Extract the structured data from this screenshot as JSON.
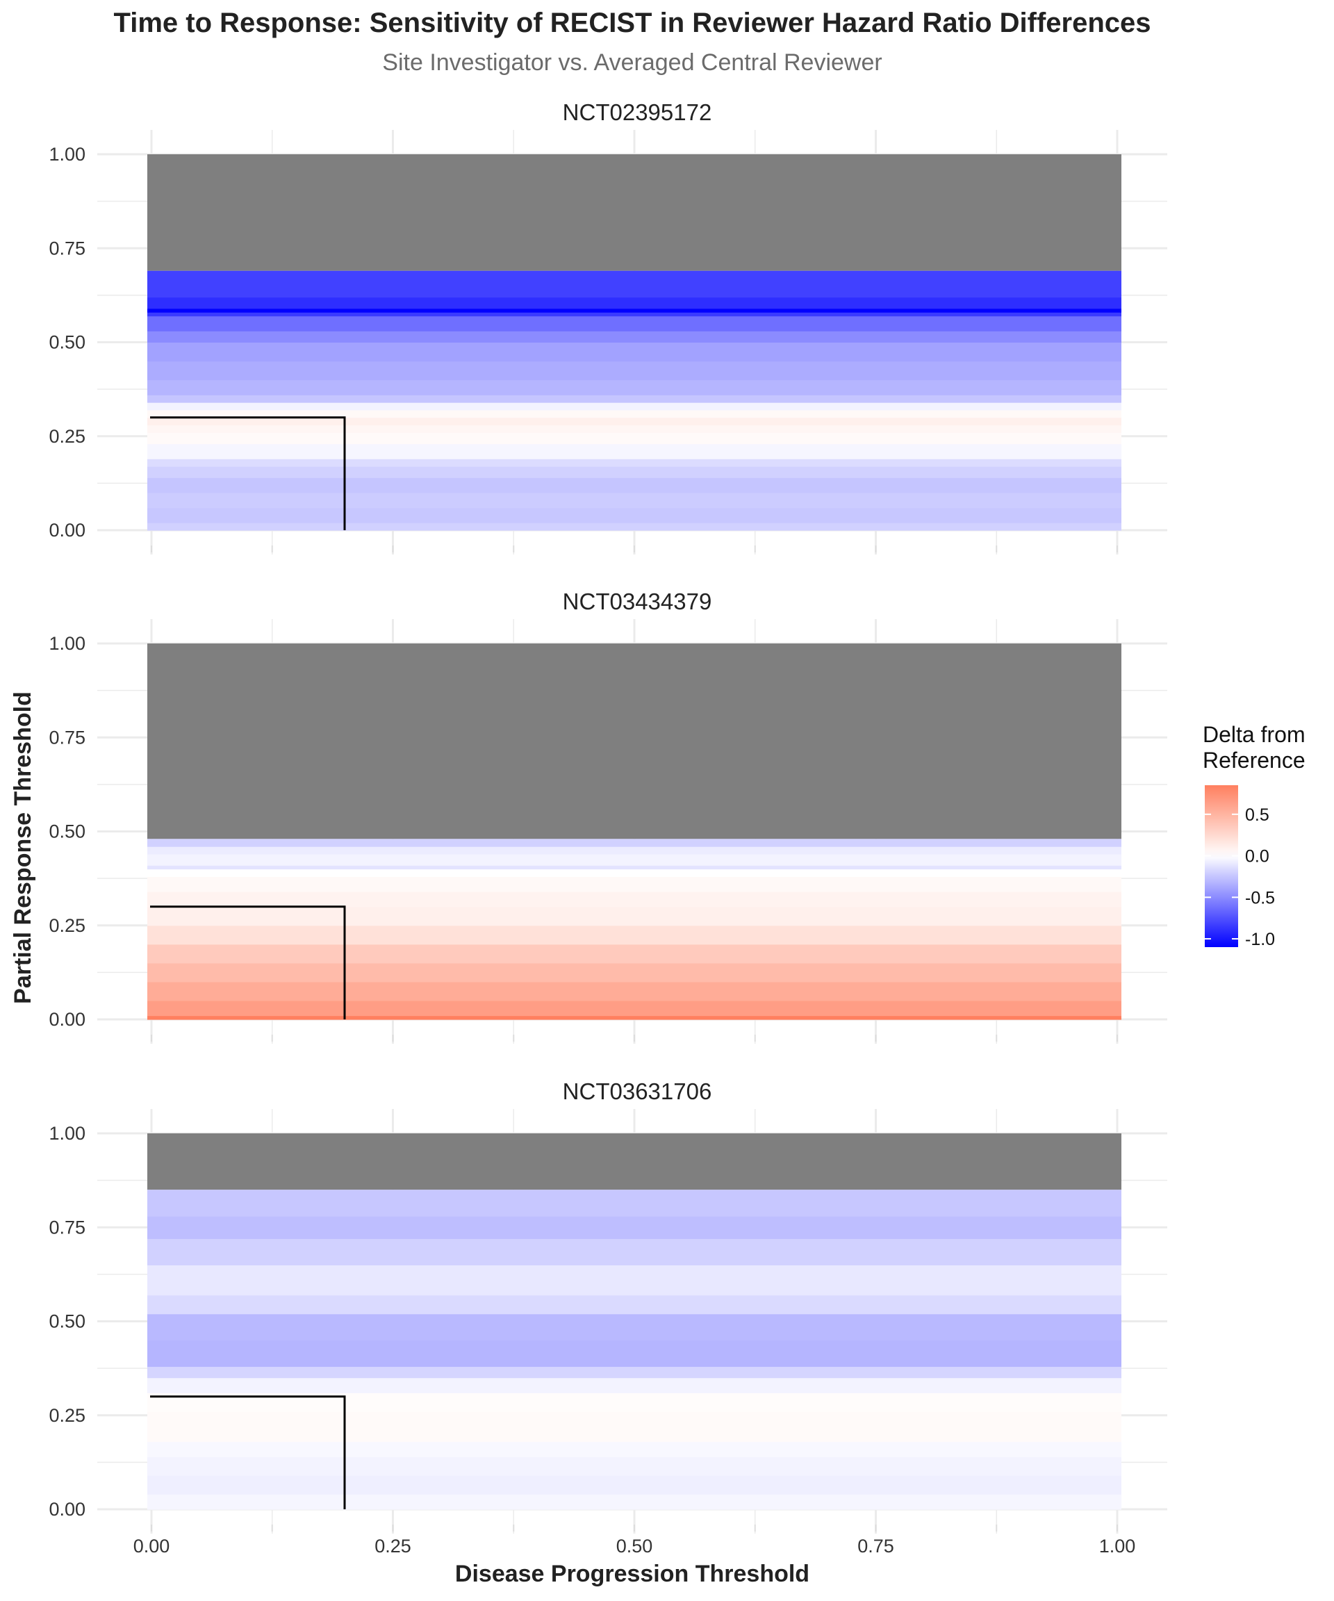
{
  "chart_data": {
    "type": "heatmap",
    "title": "Time to Response: Sensitivity of RECIST in Reviewer Hazard Ratio Differences",
    "subtitle": "Site Investigator vs. Averaged Central Reviewer",
    "xlabel": "Disease Progression Threshold",
    "ylabel": "Partial Response Threshold",
    "xlim": [
      0,
      1
    ],
    "ylim": [
      0,
      1
    ],
    "x_ticks": [
      "0.00",
      "0.25",
      "0.50",
      "0.75",
      "1.00"
    ],
    "y_ticks": [
      "0.00",
      "0.25",
      "0.50",
      "0.75",
      "1.00"
    ],
    "grid": true,
    "na_color": "#7f7f7f",
    "color_scale": {
      "title_lines": [
        "Delta from",
        "Reference"
      ],
      "low_color": "#0000ff",
      "mid_color": "#ffffff",
      "high_color": "#ff7f5f",
      "limits": [
        -1.1,
        0.85
      ],
      "ticks": [
        {
          "value": 0.5,
          "label": "0.5"
        },
        {
          "value": 0.0,
          "label": "0.0"
        },
        {
          "value": -0.5,
          "label": "-0.5"
        },
        {
          "value": -1.0,
          "label": "-1.0"
        }
      ],
      "placement": "right"
    },
    "reference_point": {
      "x": 0.2,
      "y": 0.3
    },
    "panels": [
      {
        "strip": "NCT02395172",
        "na_above": 0.69,
        "bands": [
          {
            "y0": 0.0,
            "y1": 0.02,
            "delta": -0.2
          },
          {
            "y0": 0.02,
            "y1": 0.06,
            "delta": -0.24
          },
          {
            "y0": 0.06,
            "y1": 0.1,
            "delta": -0.22
          },
          {
            "y0": 0.1,
            "y1": 0.14,
            "delta": -0.25
          },
          {
            "y0": 0.14,
            "y1": 0.17,
            "delta": -0.2
          },
          {
            "y0": 0.17,
            "y1": 0.19,
            "delta": -0.15
          },
          {
            "y0": 0.19,
            "y1": 0.23,
            "delta": -0.04
          },
          {
            "y0": 0.23,
            "y1": 0.26,
            "delta": 0.03
          },
          {
            "y0": 0.26,
            "y1": 0.28,
            "delta": 0.06
          },
          {
            "y0": 0.28,
            "y1": 0.3,
            "delta": 0.1
          },
          {
            "y0": 0.3,
            "y1": 0.32,
            "delta": 0.04
          },
          {
            "y0": 0.32,
            "y1": 0.34,
            "delta": -0.05
          },
          {
            "y0": 0.34,
            "y1": 0.36,
            "delta": -0.25
          },
          {
            "y0": 0.36,
            "y1": 0.4,
            "delta": -0.32
          },
          {
            "y0": 0.4,
            "y1": 0.45,
            "delta": -0.36
          },
          {
            "y0": 0.45,
            "y1": 0.5,
            "delta": -0.4
          },
          {
            "y0": 0.5,
            "y1": 0.53,
            "delta": -0.5
          },
          {
            "y0": 0.53,
            "y1": 0.57,
            "delta": -0.62
          },
          {
            "y0": 0.57,
            "y1": 0.58,
            "delta": -0.85
          },
          {
            "y0": 0.58,
            "y1": 0.59,
            "delta": -1.1
          },
          {
            "y0": 0.59,
            "y1": 0.62,
            "delta": -0.9
          },
          {
            "y0": 0.62,
            "y1": 0.69,
            "delta": -0.82
          }
        ]
      },
      {
        "strip": "NCT03434379",
        "na_above": 0.48,
        "bands": [
          {
            "y0": 0.0,
            "y1": 0.01,
            "delta": 0.85
          },
          {
            "y0": 0.01,
            "y1": 0.05,
            "delta": 0.65
          },
          {
            "y0": 0.05,
            "y1": 0.1,
            "delta": 0.55
          },
          {
            "y0": 0.1,
            "y1": 0.15,
            "delta": 0.45
          },
          {
            "y0": 0.15,
            "y1": 0.2,
            "delta": 0.35
          },
          {
            "y0": 0.2,
            "y1": 0.25,
            "delta": 0.2
          },
          {
            "y0": 0.25,
            "y1": 0.3,
            "delta": 0.1
          },
          {
            "y0": 0.3,
            "y1": 0.34,
            "delta": 0.08
          },
          {
            "y0": 0.34,
            "y1": 0.38,
            "delta": 0.04
          },
          {
            "y0": 0.38,
            "y1": 0.4,
            "delta": 0.0
          },
          {
            "y0": 0.4,
            "y1": 0.41,
            "delta": -0.12
          },
          {
            "y0": 0.41,
            "y1": 0.44,
            "delta": -0.05
          },
          {
            "y0": 0.44,
            "y1": 0.46,
            "delta": -0.08
          },
          {
            "y0": 0.46,
            "y1": 0.48,
            "delta": -0.2
          }
        ]
      },
      {
        "strip": "NCT03631706",
        "na_above": 0.85,
        "bands": [
          {
            "y0": 0.0,
            "y1": 0.04,
            "delta": -0.04
          },
          {
            "y0": 0.04,
            "y1": 0.09,
            "delta": -0.07
          },
          {
            "y0": 0.09,
            "y1": 0.14,
            "delta": -0.05
          },
          {
            "y0": 0.14,
            "y1": 0.18,
            "delta": -0.03
          },
          {
            "y0": 0.18,
            "y1": 0.26,
            "delta": 0.03
          },
          {
            "y0": 0.26,
            "y1": 0.31,
            "delta": 0.02
          },
          {
            "y0": 0.31,
            "y1": 0.35,
            "delta": -0.05
          },
          {
            "y0": 0.35,
            "y1": 0.38,
            "delta": -0.18
          },
          {
            "y0": 0.38,
            "y1": 0.45,
            "delta": -0.32
          },
          {
            "y0": 0.45,
            "y1": 0.52,
            "delta": -0.3
          },
          {
            "y0": 0.52,
            "y1": 0.57,
            "delta": -0.16
          },
          {
            "y0": 0.57,
            "y1": 0.65,
            "delta": -0.1
          },
          {
            "y0": 0.65,
            "y1": 0.72,
            "delta": -0.2
          },
          {
            "y0": 0.72,
            "y1": 0.78,
            "delta": -0.28
          },
          {
            "y0": 0.78,
            "y1": 0.85,
            "delta": -0.24
          }
        ]
      }
    ]
  }
}
